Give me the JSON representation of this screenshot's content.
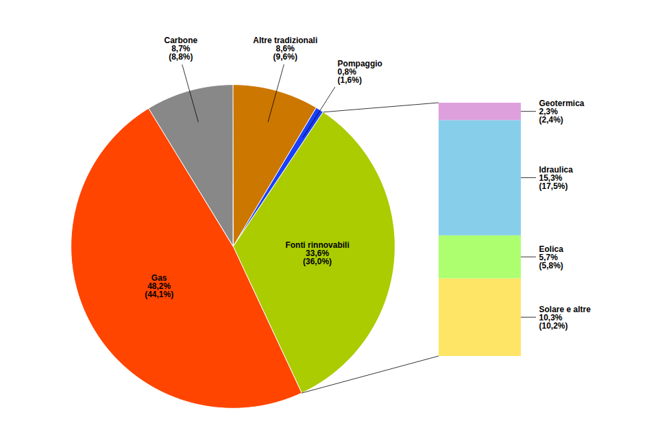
{
  "chart_data": [
    {
      "type": "pie",
      "categories": [
        "Altre tradizionali",
        "Pompaggio",
        "Fonti rinnovabili",
        "Gas",
        "Carbone"
      ],
      "values": [
        8.6,
        0.8,
        33.6,
        48.2,
        8.7
      ],
      "value_labels": [
        "8,6%",
        "0,8%",
        "33,6%",
        "48,2%",
        "8,7%"
      ],
      "previous_labels": [
        "(9,6%)",
        "(1,6%)",
        "(36,0%)",
        "(44,1%)",
        "(8,8%)"
      ],
      "colors": [
        "#CC7700",
        "#1A3FFF",
        "#AACC00",
        "#FF4500",
        "#888888"
      ],
      "data_labels": true
    },
    {
      "type": "bar",
      "stacked": true,
      "categories": [
        null
      ],
      "series": [
        {
          "name": "Solare e altre",
          "color": "#FFE566",
          "values": [
            10.3
          ],
          "value_labels": [
            "10,3%"
          ],
          "previous_labels": [
            "(10,2%)"
          ]
        },
        {
          "name": "Eolica",
          "color": "#ADFF70",
          "values": [
            5.7
          ],
          "value_labels": [
            "5,7%"
          ],
          "previous_labels": [
            "(5,8%)"
          ]
        },
        {
          "name": "Idraulica",
          "color": "#87CEEB",
          "values": [
            15.3
          ],
          "value_labels": [
            "15,3%"
          ],
          "previous_labels": [
            "(17,5%)"
          ]
        },
        {
          "name": "Geotermica",
          "color": "#DDA0DD",
          "values": [
            2.3
          ],
          "value_labels": [
            "2,3%"
          ],
          "previous_labels": [
            "(2,4%)"
          ]
        }
      ],
      "ylim": [
        0,
        33.6
      ],
      "tick_labels": false,
      "data_labels": true
    }
  ]
}
